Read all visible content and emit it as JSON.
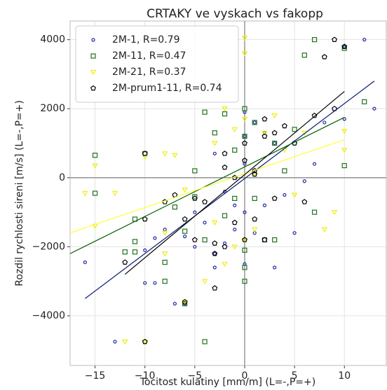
{
  "chart_data": {
    "type": "scatter",
    "title": "CRTAKY ve vyskach vs fakopp",
    "xlabel": "Tocitost kulatiny [mm/m] (L=-,P=+)",
    "ylabel": "Rozdil rychlosti sireni [m/s] (L=-,P=+)",
    "xlim": [
      -17.5,
      14.2
    ],
    "ylim": [
      -5440,
      4540
    ],
    "xticks": [
      {
        "value": -15,
        "label": "−15"
      },
      {
        "value": -10,
        "label": "−10"
      },
      {
        "value": -5,
        "label": "−5"
      },
      0,
      5,
      10
    ],
    "yticks": [
      {
        "value": -4000,
        "label": "−4000"
      },
      {
        "value": -2000,
        "label": "−2000"
      },
      0,
      2000,
      4000
    ],
    "grid": true,
    "legend": "upper left",
    "series": [
      {
        "name": "2M-1, R=0.79",
        "marker": "circle",
        "color": "#1f2a9e",
        "line_color": "#0a1a70",
        "x": [
          12,
          -16,
          -13,
          -10,
          -9,
          -7,
          -6,
          -10,
          -9,
          -8,
          -6,
          -5,
          -4,
          -3,
          -3,
          -2,
          -1,
          -1,
          0,
          0,
          0,
          0,
          1,
          2,
          3,
          4,
          5,
          6,
          7,
          8,
          10,
          10,
          13,
          -2,
          -3,
          1,
          3,
          2,
          0,
          -5
        ],
        "values": [
          4000,
          -2450,
          -4750,
          -3050,
          -3050,
          -3650,
          -3650,
          -2100,
          -1750,
          -1500,
          -1700,
          -2000,
          -1300,
          -2600,
          -2200,
          -1900,
          -800,
          -1500,
          -1000,
          400,
          1200,
          1900,
          1600,
          1300,
          1000,
          -500,
          -1600,
          -100,
          400,
          1600,
          1700,
          3800,
          2000,
          -400,
          700,
          -1600,
          -2600,
          -800,
          -2500,
          -1000
        ],
        "fit_x": [
          -16,
          13
        ],
        "fit_y": [
          -3500,
          2800
        ]
      },
      {
        "name": "2M-11, R=0.47",
        "marker": "square",
        "color": "#207020",
        "line_color": "#006000",
        "x": [
          -15,
          -15,
          -10,
          -11,
          -11,
          -12,
          -11,
          -8,
          -8,
          -6,
          -4,
          -7,
          -6,
          -5,
          -5,
          -4,
          -3,
          -2,
          -2,
          -1,
          0,
          0,
          0,
          0,
          0,
          1,
          2,
          3,
          3,
          4,
          5,
          6,
          7,
          7,
          10,
          10,
          12,
          -1,
          -4,
          1
        ],
        "values": [
          650,
          -450,
          700,
          -1200,
          -1850,
          -2150,
          -2150,
          -2450,
          -3000,
          -3650,
          -4750,
          -850,
          -1550,
          -550,
          200,
          1900,
          1300,
          1850,
          -1100,
          -600,
          2000,
          1200,
          -2600,
          -3000,
          -2100,
          1600,
          -1800,
          -1800,
          1000,
          200,
          1400,
          3550,
          4000,
          -1000,
          3750,
          350,
          2200,
          800,
          -1800,
          -600
        ],
        "fit_x": [
          -17.5,
          10
        ],
        "fit_y": [
          -2200,
          1750
        ]
      },
      {
        "name": "2M-21, R=0.37",
        "marker": "triangle",
        "color": "#eeee10",
        "line_color": "#ffff30",
        "x": [
          -16,
          -15,
          -13,
          -15,
          -10,
          -12,
          -10,
          -8,
          -8,
          -8,
          -6,
          -7,
          -6,
          -4,
          -3,
          -2,
          -2,
          -1,
          0,
          0,
          0,
          0,
          1,
          1,
          3,
          4,
          5,
          6,
          8,
          9,
          10,
          10,
          -1,
          -3,
          2
        ],
        "values": [
          -450,
          350,
          -450,
          -1400,
          600,
          -4750,
          -4750,
          700,
          -1600,
          -2200,
          -3600,
          650,
          -350,
          -3000,
          1000,
          2000,
          -2500,
          1400,
          3600,
          4050,
          1700,
          -1800,
          -1500,
          100,
          1800,
          800,
          -500,
          1300,
          -1500,
          -1000,
          1350,
          800,
          -2000,
          -1300,
          1300
        ],
        "fit_x": [
          -17.5,
          10
        ],
        "fit_y": [
          -1600,
          1100
        ]
      },
      {
        "name": "2M-prum1-11, R=0.74",
        "marker": "pentagon",
        "color": "#000000",
        "line_color": "#000000",
        "x": [
          -12,
          -10,
          -10,
          -10,
          -8,
          -7,
          -6,
          -6,
          -5,
          -4,
          -3,
          -3,
          -2,
          -2,
          -2,
          -1,
          -1,
          0,
          0,
          0,
          1,
          1,
          2,
          2,
          3,
          3,
          4,
          5,
          6,
          7,
          8,
          9,
          9,
          10,
          -5,
          1,
          2,
          -3
        ],
        "values": [
          -2450,
          -4750,
          -1200,
          700,
          -700,
          -500,
          -3600,
          -1200,
          -1800,
          -700,
          -1900,
          -3200,
          300,
          700,
          -2000,
          0,
          -1300,
          1000,
          -1800,
          500,
          -1200,
          100,
          1700,
          -1800,
          1300,
          -600,
          1500,
          1000,
          -700,
          1800,
          3500,
          4000,
          2000,
          3800,
          -600,
          200,
          1200,
          -2200
        ],
        "fit_x": [
          -12,
          10
        ],
        "fit_y": [
          -2800,
          2500
        ]
      }
    ]
  }
}
